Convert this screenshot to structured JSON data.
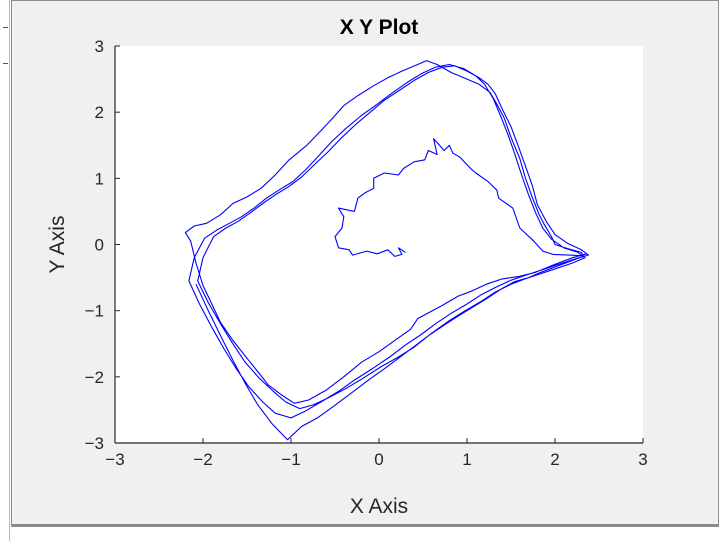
{
  "chart_data": {
    "type": "line",
    "title": "X Y Plot",
    "xlabel": "X Axis",
    "ylabel": "Y Axis",
    "xlim": [
      -3,
      3
    ],
    "ylim": [
      -3,
      3
    ],
    "xticks": [
      -3,
      -2,
      -1,
      0,
      1,
      2,
      3
    ],
    "yticks": [
      -3,
      -2,
      -1,
      0,
      1,
      2,
      3
    ],
    "grid": false,
    "legend": "none",
    "line_color": "#0000ff",
    "background": "#ffffff",
    "figure_background": "#f0f0f0",
    "series": [
      {
        "x": [
          0.3,
          0.22,
          0.26,
          0.18,
          0.1,
          -0.02,
          -0.14,
          -0.3,
          -0.34,
          -0.46,
          -0.5,
          -0.42,
          -0.4,
          -0.46,
          -0.28,
          -0.24,
          -0.16,
          -0.06,
          -0.06,
          0.06,
          0.22,
          0.28,
          0.4,
          0.52,
          0.56,
          0.66,
          0.62,
          0.74,
          0.8,
          0.84,
          0.92,
          1.04,
          1.1,
          1.24,
          1.34,
          1.36,
          1.52,
          1.6,
          1.76,
          1.86,
          1.98,
          2.16,
          2.3,
          2.36,
          2.2,
          1.96,
          1.78,
          1.6,
          1.4,
          1.22,
          1.06,
          0.9,
          0.72,
          0.58,
          0.44,
          0.36,
          0.18,
          0.0,
          -0.2,
          -0.4,
          -0.6,
          -0.8,
          -0.96,
          -1.1,
          -1.26,
          -1.36,
          -1.5,
          -1.66,
          -1.8,
          -1.9,
          -2.0,
          -2.08,
          -2.14,
          -2.2,
          -2.1,
          -1.96,
          -1.8,
          -1.66,
          -1.5,
          -1.34,
          -1.18,
          -1.02,
          -0.82,
          -0.66,
          -0.52,
          -0.4,
          -0.24,
          -0.06,
          0.1,
          0.26,
          0.44,
          0.54,
          0.66,
          0.82,
          1.0,
          1.14,
          1.26,
          1.34,
          1.42,
          1.5,
          1.6,
          1.66,
          1.74,
          1.82,
          1.88,
          1.96,
          2.0,
          2.14,
          2.3,
          2.32,
          2.16,
          2.0,
          1.84,
          1.7,
          1.54,
          1.38,
          1.22,
          1.06,
          0.9,
          0.74,
          0.56,
          0.4,
          0.22,
          0.02,
          -0.18,
          -0.38,
          -0.58,
          -0.74,
          -0.9,
          -1.06,
          -1.2,
          -1.36,
          -1.52,
          -1.66,
          -1.8,
          -1.94,
          -2.06,
          -2.0,
          -1.88,
          -1.74,
          -1.6,
          -1.46,
          -1.32,
          -1.18,
          -1.02,
          -0.88,
          -0.74,
          -0.58,
          -0.42,
          -0.26,
          -0.1,
          0.06,
          0.22,
          0.4,
          0.56,
          0.72,
          0.86,
          1.0,
          1.14,
          1.24,
          1.32,
          1.4,
          1.5,
          1.58,
          1.66,
          1.74,
          1.8,
          1.9,
          2.0,
          2.14,
          2.3,
          2.38,
          2.22,
          2.04,
          1.86,
          1.68,
          1.5,
          1.34,
          1.16,
          1.0,
          0.82,
          0.64,
          0.48,
          0.3,
          0.12,
          -0.08,
          -0.28,
          -0.46,
          -0.66,
          -0.84,
          -1.0,
          -1.18,
          -1.32,
          -1.48,
          -1.62,
          -1.76,
          -1.9,
          -2.04,
          -2.16,
          -2.1,
          -1.98,
          -1.84,
          -1.7,
          -1.56,
          -1.42,
          -1.28,
          -1.14,
          -0.98,
          -0.84,
          -0.7,
          -0.54,
          -0.38,
          -0.2,
          -0.02,
          0.16,
          0.32,
          0.48,
          0.64,
          0.8,
          0.96,
          1.1,
          1.2,
          1.3,
          1.38,
          1.46,
          1.54,
          1.62,
          1.7,
          1.78,
          1.86,
          1.96,
          2.1,
          2.26,
          2.34,
          2.2,
          2.02,
          1.84,
          1.66,
          1.5,
          1.32,
          1.16,
          0.98,
          0.8,
          0.62,
          0.44,
          0.26,
          0.08,
          -0.12,
          -0.32,
          -0.52,
          -0.7,
          -0.88,
          -1.04,
          -1.22,
          -1.38,
          -1.52,
          -1.66,
          -1.8,
          -1.94,
          -2.08
        ],
        "y": [
          -0.12,
          -0.05,
          -0.15,
          -0.18,
          -0.08,
          -0.14,
          -0.1,
          -0.16,
          -0.08,
          -0.05,
          0.12,
          0.25,
          0.42,
          0.55,
          0.5,
          0.7,
          0.78,
          0.85,
          1.0,
          1.08,
          1.05,
          1.15,
          1.25,
          1.28,
          1.42,
          1.36,
          1.6,
          1.42,
          1.5,
          1.38,
          1.32,
          1.15,
          1.08,
          0.95,
          0.82,
          0.7,
          0.55,
          0.25,
          0.05,
          -0.1,
          -0.15,
          -0.16,
          -0.17,
          -0.14,
          -0.2,
          -0.32,
          -0.42,
          -0.48,
          -0.52,
          -0.6,
          -0.7,
          -0.78,
          -0.92,
          -1.02,
          -1.12,
          -1.28,
          -1.45,
          -1.62,
          -1.78,
          -2.0,
          -2.2,
          -2.35,
          -2.4,
          -2.28,
          -2.12,
          -1.95,
          -1.72,
          -1.45,
          -1.18,
          -0.9,
          -0.62,
          -0.28,
          0.05,
          0.18,
          0.28,
          0.32,
          0.45,
          0.62,
          0.72,
          0.85,
          1.05,
          1.28,
          1.5,
          1.72,
          1.92,
          2.1,
          2.25,
          2.4,
          2.52,
          2.62,
          2.72,
          2.78,
          2.72,
          2.6,
          2.5,
          2.42,
          2.3,
          2.12,
          1.92,
          1.62,
          1.3,
          1.02,
          0.72,
          0.45,
          0.3,
          0.12,
          0.0,
          -0.06,
          -0.12,
          -0.18,
          -0.26,
          -0.34,
          -0.42,
          -0.5,
          -0.56,
          -0.68,
          -0.82,
          -0.95,
          -1.08,
          -1.22,
          -1.38,
          -1.55,
          -1.7,
          -1.85,
          -2.02,
          -2.18,
          -2.32,
          -2.42,
          -2.48,
          -2.38,
          -2.22,
          -2.02,
          -1.78,
          -1.5,
          -1.2,
          -0.88,
          -0.55,
          -0.2,
          0.12,
          0.25,
          0.35,
          0.48,
          0.62,
          0.75,
          0.88,
          1.02,
          1.2,
          1.4,
          1.62,
          1.82,
          2.0,
          2.18,
          2.32,
          2.48,
          2.6,
          2.68,
          2.7,
          2.62,
          2.52,
          2.42,
          2.28,
          2.05,
          1.78,
          1.5,
          1.2,
          0.9,
          0.6,
          0.35,
          0.15,
          0.02,
          -0.08,
          -0.16,
          -0.22,
          -0.3,
          -0.38,
          -0.46,
          -0.54,
          -0.64,
          -0.76,
          -0.9,
          -1.04,
          -1.2,
          -1.36,
          -1.52,
          -1.7,
          -1.88,
          -2.05,
          -2.22,
          -2.38,
          -2.52,
          -2.62,
          -2.55,
          -2.38,
          -2.15,
          -1.88,
          -1.58,
          -1.25,
          -0.9,
          -0.55,
          -0.2,
          0.1,
          0.22,
          0.32,
          0.42,
          0.55,
          0.7,
          0.82,
          0.95,
          1.12,
          1.32,
          1.55,
          1.75,
          1.95,
          2.12,
          2.3,
          2.45,
          2.58,
          2.68,
          2.72,
          2.66,
          2.55,
          2.42,
          2.2,
          1.95,
          1.68,
          1.38,
          1.05,
          0.75,
          0.48,
          0.25,
          0.08,
          -0.05,
          -0.12,
          -0.2,
          -0.28,
          -0.36,
          -0.44,
          -0.52,
          -0.6,
          -0.72,
          -0.86,
          -1.0,
          -1.15,
          -1.32,
          -1.5,
          -1.68,
          -1.86,
          -2.05,
          -2.25,
          -2.45,
          -2.62,
          -2.75,
          -2.95,
          -2.7,
          -2.42,
          -2.1,
          -1.75,
          -1.38,
          -1.0,
          -0.6
        ]
      }
    ]
  }
}
